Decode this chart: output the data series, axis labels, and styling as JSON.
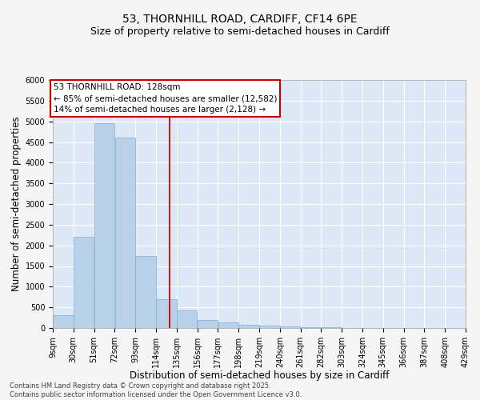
{
  "title_line1": "53, THORNHILL ROAD, CARDIFF, CF14 6PE",
  "title_line2": "Size of property relative to semi-detached houses in Cardiff",
  "xlabel": "Distribution of semi-detached houses by size in Cardiff",
  "ylabel": "Number of semi-detached properties",
  "bin_edges": [
    9,
    30,
    51,
    72,
    93,
    114,
    135,
    156,
    177,
    198,
    219,
    240,
    261,
    282,
    303,
    324,
    345,
    366,
    387,
    408,
    429
  ],
  "bin_labels": [
    "9sqm",
    "30sqm",
    "51sqm",
    "72sqm",
    "93sqm",
    "114sqm",
    "135sqm",
    "156sqm",
    "177sqm",
    "198sqm",
    "219sqm",
    "240sqm",
    "261sqm",
    "282sqm",
    "303sqm",
    "324sqm",
    "345sqm",
    "366sqm",
    "387sqm",
    "408sqm",
    "429sqm"
  ],
  "bar_heights": [
    310,
    2200,
    4950,
    4600,
    1750,
    700,
    430,
    200,
    140,
    80,
    50,
    30,
    20,
    10,
    5,
    5,
    3,
    2,
    1,
    0
  ],
  "bar_color": "#b8d0e8",
  "bar_edge_color": "#7aafd4",
  "vline_x": 128,
  "vline_color": "#cc0000",
  "annotation_title": "53 THORNHILL ROAD: 128sqm",
  "annotation_line2": "← 85% of semi-detached houses are smaller (12,582)",
  "annotation_line3": "14% of semi-detached houses are larger (2,128) →",
  "annotation_box_color": "#cc0000",
  "ylim": [
    0,
    6000
  ],
  "yticks": [
    0,
    500,
    1000,
    1500,
    2000,
    2500,
    3000,
    3500,
    4000,
    4500,
    5000,
    5500,
    6000
  ],
  "plot_background": "#dce8f5",
  "fig_background": "#f5f5f5",
  "grid_color": "#ffffff",
  "footer": "Contains HM Land Registry data © Crown copyright and database right 2025.\nContains public sector information licensed under the Open Government Licence v3.0.",
  "title_fontsize": 10,
  "subtitle_fontsize": 9,
  "axis_label_fontsize": 8.5,
  "tick_fontsize": 7,
  "annotation_fontsize": 7.5,
  "footer_fontsize": 6
}
